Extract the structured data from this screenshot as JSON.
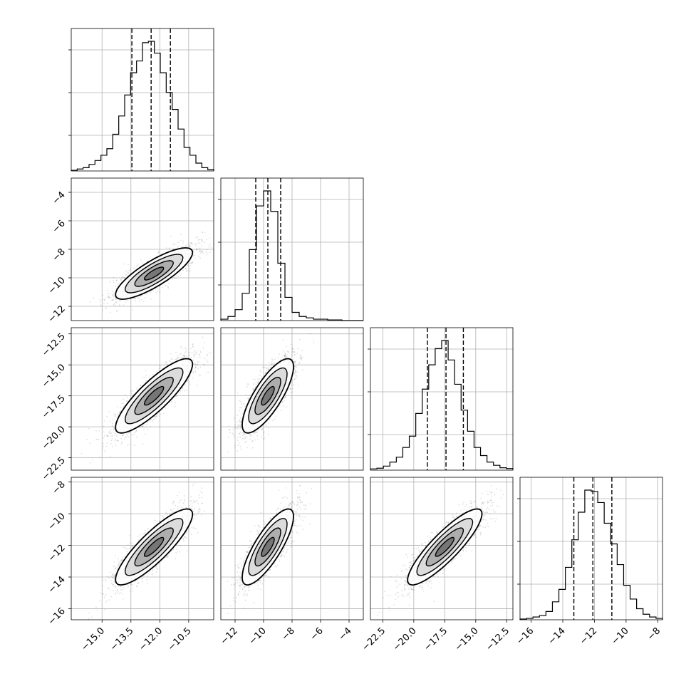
{
  "chart_data": {
    "type": "corner",
    "parameters": [
      {
        "range": [
          -16.6,
          -9.2
        ],
        "ticks": [
          -15.0,
          -13.5,
          -12.0,
          -10.5
        ],
        "tick_labels": [
          "−15.0",
          "−13.5",
          "−12.0",
          "−10.5"
        ],
        "quantiles": [
          -13.45,
          -12.45,
          -11.45
        ],
        "mean": -12.3,
        "sd": 1.0,
        "hist": [
          0.5,
          1.5,
          2.5,
          5,
          8,
          12,
          17,
          28,
          42,
          58,
          75,
          84,
          98,
          99,
          90,
          75,
          60,
          47,
          32,
          18,
          12,
          6,
          2.5,
          1
        ]
      },
      {
        "range": [
          -13.0,
          -3.0
        ],
        "ticks": [
          -12,
          -10,
          -8,
          -6,
          -4
        ],
        "tick_labels": [
          "−12",
          "−10",
          "−8",
          "−6",
          "−4"
        ],
        "quantiles": [
          -10.55,
          -9.7,
          -8.8
        ],
        "mean": -9.7,
        "sd": 0.9,
        "hist": [
          1,
          3,
          8,
          20,
          52,
          84,
          95,
          80,
          42,
          17,
          6,
          3,
          2,
          1,
          1,
          0.5,
          0.5,
          0,
          0,
          0
        ]
      },
      {
        "range": [
          -23.5,
          -12.0
        ],
        "ticks": [
          -22.5,
          -20.0,
          -17.5,
          -15.0,
          -12.5
        ],
        "tick_labels": [
          "−22.5",
          "−20.0",
          "−17.5",
          "−15.0",
          "−12.5"
        ],
        "quantiles": [
          -18.9,
          -17.4,
          -16.0
        ],
        "mean": -17.5,
        "sd": 1.5,
        "hist": [
          0.8,
          1.2,
          2.5,
          5,
          8,
          14,
          21,
          35,
          50,
          65,
          75,
          80,
          68,
          53,
          37,
          24,
          14,
          9,
          5,
          3,
          1.5,
          1
        ]
      },
      {
        "range": [
          -16.7,
          -7.7
        ],
        "ticks": [
          -16,
          -14,
          -12,
          -10,
          -8
        ],
        "tick_labels": [
          "−16",
          "−14",
          "−12",
          "−10",
          "−8"
        ],
        "quantiles": [
          -13.3,
          -12.1,
          -10.9
        ],
        "mean": -12.1,
        "sd": 1.2,
        "hist": [
          0.5,
          1,
          2,
          3,
          6,
          13,
          22,
          38,
          58,
          78,
          94,
          93,
          85,
          70,
          55,
          40,
          25,
          15,
          8,
          4,
          2,
          1
        ]
      }
    ],
    "y_axis_ticks": [
      null,
      {
        "ticks": [
          -12,
          -10,
          -8,
          -6,
          -4
        ],
        "tick_labels": [
          "−12",
          "−10",
          "−8",
          "−6",
          "−4"
        ]
      },
      {
        "ticks": [
          -22.5,
          -20.0,
          -17.5,
          -15.0,
          -12.5
        ],
        "tick_labels": [
          "−22.5",
          "−20.0",
          "−17.5",
          "−15.0",
          "−12.5"
        ]
      },
      {
        "ticks": [
          -16,
          -14,
          -12,
          -10,
          -8
        ],
        "tick_labels": [
          "−16",
          "−14",
          "−12",
          "−10",
          "−8"
        ]
      }
    ],
    "correlations": [
      [
        1.0,
        0.82,
        0.85,
        0.86
      ],
      [
        0.82,
        1.0,
        0.78,
        0.8
      ],
      [
        0.85,
        0.78,
        1.0,
        0.87
      ],
      [
        0.86,
        0.8,
        0.87,
        1.0
      ]
    ],
    "contour_levels_sigma": [
      0.5,
      1.0,
      1.5,
      2.0
    ],
    "grid": true,
    "colors": {
      "line": "#000000",
      "points": "#000000",
      "grid": "#b0b0b0",
      "fill": [
        "#d8d8d8",
        "#a8a8a8",
        "#707070",
        "#303030"
      ]
    }
  }
}
